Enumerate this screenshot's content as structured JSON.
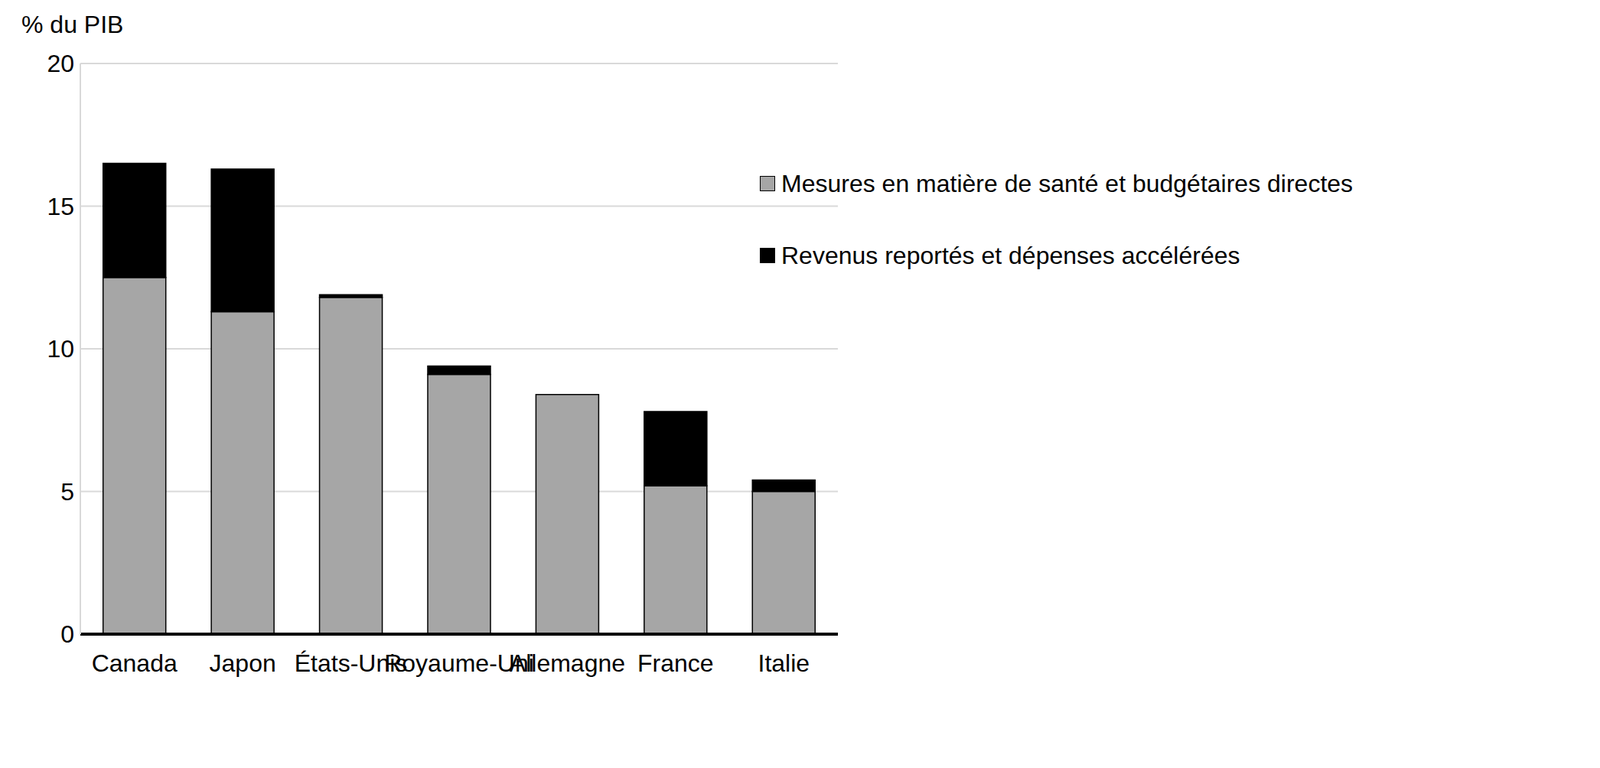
{
  "chart_data": {
    "type": "bar",
    "stacked": true,
    "y_label": "% du PIB",
    "categories": [
      "Canada",
      "Japon",
      "États-Unis",
      "Royaume-Uni",
      "Allemagne",
      "France",
      "Italie"
    ],
    "series": [
      {
        "name": "Mesures en matière de santé et budgétaires directes",
        "color": "#a6a6a6",
        "values": [
          12.5,
          11.3,
          11.8,
          9.1,
          8.4,
          5.2,
          5.0
        ]
      },
      {
        "name": "Revenus reportés et dépenses accélérées",
        "color": "#000000",
        "values": [
          4.0,
          5.0,
          0.1,
          0.3,
          0.0,
          2.6,
          0.4
        ]
      }
    ],
    "ylim": [
      0,
      20
    ],
    "yticks": [
      0,
      5,
      10,
      15,
      20
    ],
    "grid": true,
    "legend": "upper right"
  }
}
